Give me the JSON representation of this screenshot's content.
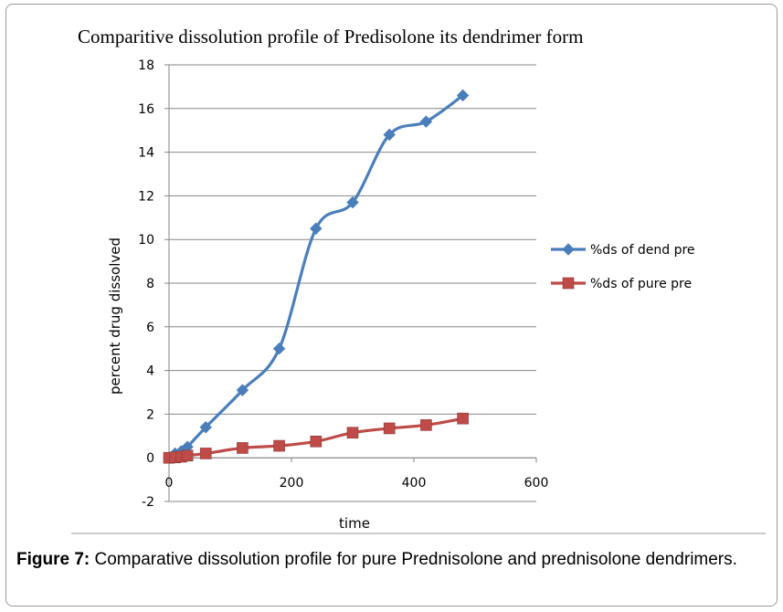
{
  "chart_data": {
    "type": "line",
    "title": "Comparitive dissolution profile of Predisolone its dendrimer form",
    "xlabel": "time",
    "ylabel": "percent drug dissolved",
    "xlim": [
      0,
      600
    ],
    "ylim": [
      -2,
      18
    ],
    "x_ticks": [
      0,
      200,
      400,
      600
    ],
    "y_ticks": [
      -2,
      0,
      2,
      4,
      6,
      8,
      10,
      12,
      14,
      16,
      18
    ],
    "grid": "horizontal",
    "legend_position": "right",
    "series": [
      {
        "name": "%ds of dend pre",
        "color": "#4a7ebb",
        "marker": "diamond",
        "x": [
          0,
          10,
          20,
          30,
          60,
          120,
          180,
          240,
          300,
          360,
          420,
          480
        ],
        "y": [
          0,
          0.2,
          0.3,
          0.5,
          1.4,
          3.1,
          5.0,
          10.5,
          11.7,
          14.8,
          15.4,
          16.6
        ]
      },
      {
        "name": "%ds of pure pre",
        "color": "#be4b48",
        "marker": "square",
        "x": [
          0,
          10,
          20,
          30,
          60,
          120,
          180,
          240,
          300,
          360,
          420,
          480
        ],
        "y": [
          0,
          0.02,
          0.05,
          0.1,
          0.2,
          0.45,
          0.55,
          0.75,
          1.15,
          1.35,
          1.5,
          1.8
        ]
      }
    ]
  },
  "caption": {
    "label": "Figure 7:",
    "text": " Comparative dissolution profile for pure Prednisolone and prednisolone dendrimers."
  }
}
